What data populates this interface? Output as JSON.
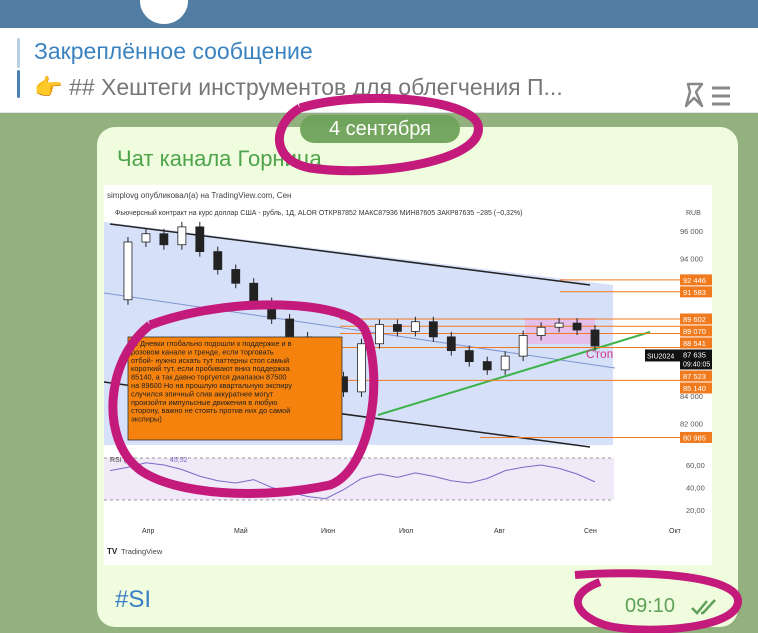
{
  "header": {
    "avatar": "channel-avatar"
  },
  "pinned": {
    "title": "Закреплённое сообщение",
    "emoji": "👉",
    "text": "## Хештеги инструментов для облегчения П..."
  },
  "message": {
    "sender": "Чат канала Горница",
    "date_pill": "4 сентября",
    "hashtag": "#SI",
    "time": "09:10",
    "status": "read"
  },
  "chart": {
    "published": "simplovg опубликовал(а) на TradingView.com, Сен",
    "instrument": "Фьючерсный контракт на курс доллар США - рубль, 1Д, ALOR  ОТКР87852  МАКС87936  МИН87605  ЗАКР87635  −285 (−0,32%)",
    "currency": "RUB",
    "price_ticks": [
      "96 000",
      "94 000",
      "84 000",
      "82 000"
    ],
    "price_tick_values": [
      96000,
      94000,
      84000,
      82000
    ],
    "levels": [
      {
        "label": "92 446",
        "v": 92446
      },
      {
        "label": "91 583",
        "v": 91583
      },
      {
        "label": "89 602",
        "v": 89602
      },
      {
        "label": "89 070",
        "v": 89070
      },
      {
        "label": "88 541",
        "v": 88541
      },
      {
        "label": "87 523",
        "v": 87523
      },
      {
        "label": "85 140",
        "v": 85140
      },
      {
        "label": "80 985",
        "v": 80985
      }
    ],
    "last": {
      "ticker": "SIU2024",
      "price": "87 635",
      "timer": "09:40:05",
      "v": 87635
    },
    "stop_label": "Стоп",
    "note": "SI Дневки глобально подошли к поддержке и в розовом канале и тренде, если торговать отбой- нужно искать тут паттерны стоп самый короткий тут, если пробивают вниз поддержка 85140, а так давно торгуется диапазон 87500 на 89600 Но на прошлую квартальную экспиру случился эпичный слив аккуратнее могут произойти импульсные движения в любую сторону, важно не стоять против них до самой экспиры)",
    "rsi_label": "RSI (14",
    "rsi_value": "45,52",
    "rsi_ticks": [
      "60,00",
      "40,00",
      "20,00"
    ],
    "rsi_tick_values": [
      60,
      40,
      20
    ],
    "months": [
      "Апр",
      "Май",
      "Июн",
      "Июл",
      "Авг",
      "Сен",
      "Окт"
    ],
    "brand": "TradingView",
    "price_path": [
      91000,
      95200,
      95800,
      95000,
      96300,
      94500,
      93200,
      92200,
      90800,
      89600,
      88300,
      87000,
      85400,
      84300,
      87800,
      89200,
      88700,
      89400,
      88300,
      87300,
      86500,
      85900,
      86900,
      88400,
      89000,
      89300,
      88800,
      87635
    ],
    "rsi_path": [
      55,
      58,
      62,
      60,
      56,
      50,
      46,
      44,
      47,
      40,
      36,
      32,
      30,
      38,
      48,
      52,
      49,
      53,
      50,
      46,
      44,
      48,
      55,
      58,
      60,
      57,
      52,
      45
    ],
    "colors": {
      "level": "#f07a1e",
      "note_bg": "#f5820d",
      "channel": "#c9d6f7",
      "pink_zone": "#e9b8e6",
      "trend": "#3db34a",
      "annotation": "#c41a7c"
    }
  }
}
